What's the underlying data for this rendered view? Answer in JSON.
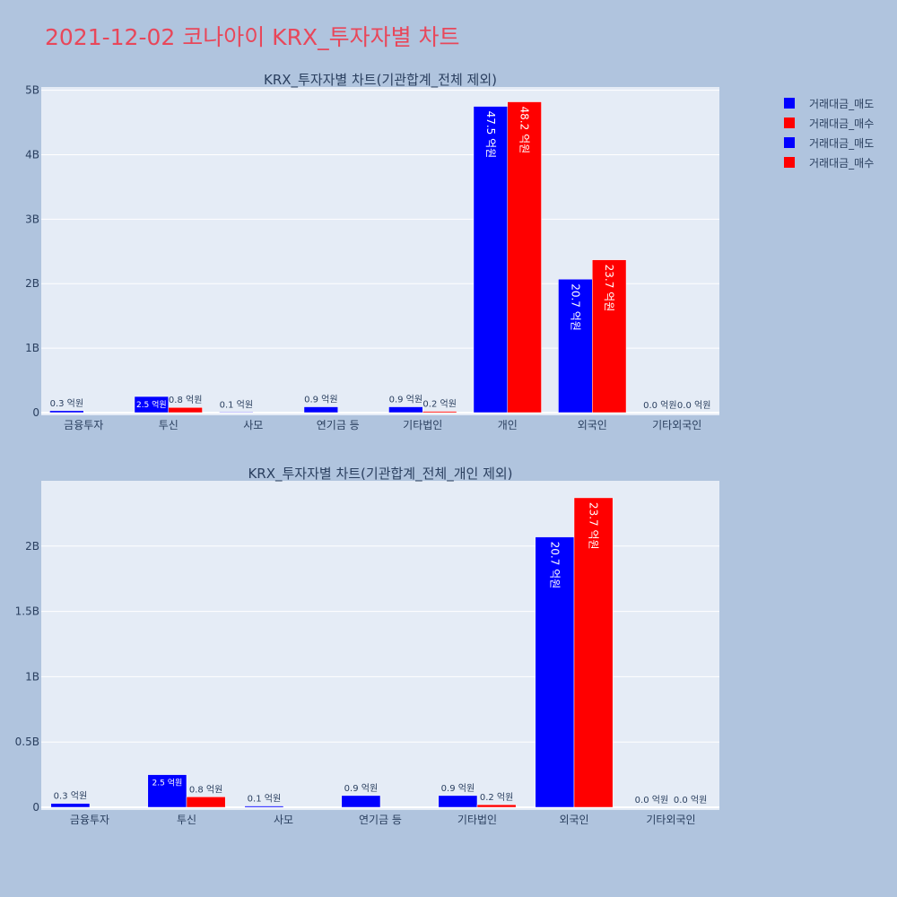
{
  "title": "2021-12-02 코나아이 KRX_투자자별 차트",
  "legend": [
    {
      "label": "거래대금_매도",
      "color": "#0000ff"
    },
    {
      "label": "거래대금_매수",
      "color": "#ff0000"
    },
    {
      "label": "거래대금_매도",
      "color": "#0000ff"
    },
    {
      "label": "거래대금_매수",
      "color": "#ff0000"
    }
  ],
  "chart_data": [
    {
      "type": "bar",
      "title": "KRX_투자자별 차트(기관합계_전체 제외)",
      "categories": [
        "금융투자",
        "투신",
        "사모",
        "연기금 등",
        "기타법인",
        "개인",
        "외국인",
        "기타외국인"
      ],
      "ylim": [
        0,
        5.05
      ],
      "yticks": [
        0,
        1,
        2,
        3,
        4,
        5
      ],
      "ytick_labels": [
        "0",
        "1B",
        "2B",
        "3B",
        "4B",
        "5B"
      ],
      "series": [
        {
          "name": "거래대금_매도",
          "color": "#0000ff",
          "values": [
            0.03,
            0.25,
            0.01,
            0.09,
            0.09,
            4.75,
            2.07,
            0.0
          ],
          "labels": [
            "0.3 억원",
            "2.5 억원",
            "0.1 억원",
            "0.9 억원",
            "0.9 억원",
            "47.5 억원",
            "20.7 억원",
            "0.0 억원"
          ]
        },
        {
          "name": "거래대금_매수",
          "color": "#ff0000",
          "values": [
            0.0,
            0.08,
            0.0,
            0.0,
            0.02,
            4.82,
            2.37,
            0.0
          ],
          "labels": [
            "",
            "0.8 억원",
            "",
            "",
            "0.2 억원",
            "48.2 억원",
            "23.7 억원",
            "0.0 억원"
          ]
        }
      ]
    },
    {
      "type": "bar",
      "title": "KRX_투자자별 차트(기관합계_전체_개인 제외)",
      "categories": [
        "금융투자",
        "투신",
        "사모",
        "연기금 등",
        "기타법인",
        "외국인",
        "기타외국인"
      ],
      "ylim": [
        0,
        2.5
      ],
      "yticks": [
        0,
        0.5,
        1,
        1.5,
        2
      ],
      "ytick_labels": [
        "0",
        "0.5B",
        "1B",
        "1.5B",
        "2B"
      ],
      "series": [
        {
          "name": "거래대금_매도",
          "color": "#0000ff",
          "values": [
            0.03,
            0.25,
            0.01,
            0.09,
            0.09,
            2.07,
            0.0
          ],
          "labels": [
            "0.3 억원",
            "2.5 억원",
            "0.1 억원",
            "0.9 억원",
            "0.9 억원",
            "20.7 억원",
            "0.0 억원"
          ]
        },
        {
          "name": "거래대금_매수",
          "color": "#ff0000",
          "values": [
            0.0,
            0.08,
            0.0,
            0.0,
            0.02,
            2.37,
            0.0
          ],
          "labels": [
            "",
            "0.8 억원",
            "",
            "",
            "0.2 억원",
            "23.7 억원",
            "0.0 억원"
          ]
        }
      ]
    }
  ]
}
